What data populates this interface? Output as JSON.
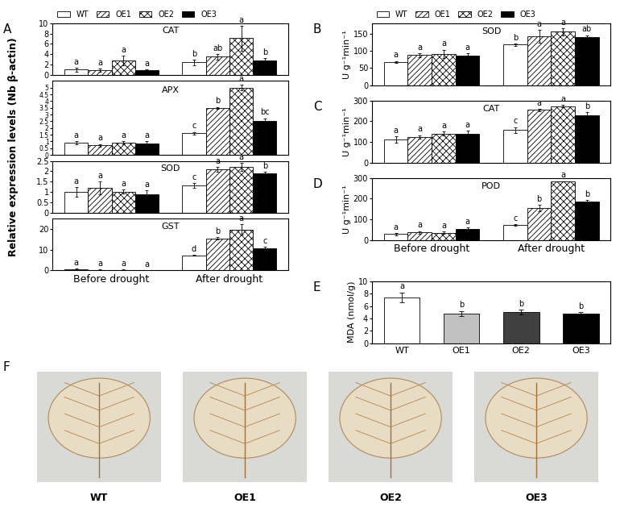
{
  "chart_data": [
    {
      "panel": "A",
      "type": "bar",
      "title": "CAT",
      "ylabel": "Relative expression levels (Nb β-actin)",
      "legend": "top",
      "tick_labels": "y",
      "categories": [
        "Before drought",
        "After drought"
      ],
      "ylim": [
        0,
        10
      ],
      "yticks": [
        0,
        2,
        4,
        6,
        8,
        10
      ],
      "series": [
        {
          "name": "WT",
          "color": "#ffffff",
          "values": [
            1.0,
            2.4
          ],
          "errors": [
            0.4,
            0.6
          ],
          "letters": [
            "a",
            "b"
          ]
        },
        {
          "name": "OE1",
          "color": "#ffffff",
          "values": [
            0.9,
            3.5
          ],
          "errors": [
            0.3,
            0.6
          ],
          "letters": [
            "a",
            "ab"
          ]
        },
        {
          "name": "OE2",
          "color": "#ffffff",
          "values": [
            2.8,
            7.1
          ],
          "errors": [
            0.9,
            2.4
          ],
          "letters": [
            "a",
            "a"
          ]
        },
        {
          "name": "OE3",
          "color": "#000000",
          "values": [
            0.9,
            2.8
          ],
          "errors": [
            0.2,
            0.4
          ],
          "letters": [
            "a",
            "b"
          ]
        }
      ]
    },
    {
      "type": "bar",
      "title": "APX",
      "tick_labels": "y",
      "categories": [
        "Before drought",
        "After drought"
      ],
      "ylim": [
        0,
        5.5
      ],
      "yticks": [
        0,
        0.5,
        1,
        1.5,
        2,
        2.5,
        3,
        3.5,
        4,
        4.5,
        5
      ],
      "series": [
        {
          "name": "WT",
          "color": "#ffffff",
          "values": [
            0.9,
            1.6
          ],
          "errors": [
            0.1,
            0.1
          ],
          "letters": [
            "a",
            "c"
          ]
        },
        {
          "name": "OE1",
          "color": "#ffffff",
          "values": [
            0.7,
            3.5
          ],
          "errors": [
            0.1,
            0.05
          ],
          "letters": [
            "a",
            "b"
          ]
        },
        {
          "name": "OE2",
          "color": "#ffffff",
          "values": [
            0.9,
            5.0
          ],
          "errors": [
            0.1,
            0.2
          ],
          "letters": [
            "a",
            "a"
          ]
        },
        {
          "name": "OE3",
          "color": "#000000",
          "values": [
            0.85,
            2.55
          ],
          "errors": [
            0.15,
            0.15
          ],
          "letters": [
            "a",
            "bc"
          ]
        }
      ]
    },
    {
      "type": "bar",
      "title": "SOD",
      "tick_labels": "y",
      "categories": [
        "Before drought",
        "After drought"
      ],
      "ylim": [
        0,
        2.5
      ],
      "yticks": [
        0,
        0.5,
        1,
        1.5,
        2,
        2.5
      ],
      "series": [
        {
          "name": "WT",
          "color": "#ffffff",
          "values": [
            1.0,
            1.32
          ],
          "errors": [
            0.25,
            0.12
          ],
          "letters": [
            "a",
            "c"
          ]
        },
        {
          "name": "OE1",
          "color": "#ffffff",
          "values": [
            1.2,
            2.1
          ],
          "errors": [
            0.3,
            0.12
          ],
          "letters": [
            "a",
            "a"
          ]
        },
        {
          "name": "OE2",
          "color": "#ffffff",
          "values": [
            1.02,
            2.2
          ],
          "errors": [
            0.1,
            0.2
          ],
          "letters": [
            "a",
            "a"
          ]
        },
        {
          "name": "OE3",
          "color": "#000000",
          "values": [
            0.88,
            1.9
          ],
          "errors": [
            0.2,
            0.08
          ],
          "letters": [
            "a",
            "b"
          ]
        }
      ]
    },
    {
      "type": "bar",
      "title": "GST",
      "categories": [
        "Before drought",
        "After drought"
      ],
      "ylim": [
        0,
        25
      ],
      "yticks": [
        0,
        10,
        20
      ],
      "series": [
        {
          "name": "WT",
          "color": "#ffffff",
          "values": [
            0.6,
            7.3
          ],
          "errors": [
            0.3,
            0.3
          ],
          "letters": [
            "a",
            "d"
          ]
        },
        {
          "name": "OE1",
          "color": "#ffffff",
          "values": [
            0.3,
            15.5
          ],
          "errors": [
            0.2,
            0.5
          ],
          "letters": [
            "a",
            "b"
          ]
        },
        {
          "name": "OE2",
          "color": "#ffffff",
          "values": [
            0.3,
            19.8
          ],
          "errors": [
            0.2,
            2.5
          ],
          "letters": [
            "a",
            "a"
          ]
        },
        {
          "name": "OE3",
          "color": "#000000",
          "values": [
            0.2,
            10.6
          ],
          "errors": [
            0.1,
            1.0
          ],
          "letters": [
            "a",
            "c"
          ]
        }
      ]
    },
    {
      "panel": "B",
      "type": "bar",
      "title": "SOD",
      "ylabel": "U g⁻¹min⁻¹",
      "legend": "top",
      "tick_labels": "y",
      "categories": [
        "Before drought",
        "After drought"
      ],
      "ylim": [
        0,
        180
      ],
      "yticks": [
        0,
        50,
        100,
        150
      ],
      "series": [
        {
          "name": "WT",
          "color": "#ffffff",
          "values": [
            67,
            118
          ],
          "errors": [
            3,
            3
          ],
          "letters": [
            "a",
            "b"
          ]
        },
        {
          "name": "OE1",
          "color": "#ffffff",
          "values": [
            87,
            142
          ],
          "errors": [
            6,
            18
          ],
          "letters": [
            "a",
            "a"
          ]
        },
        {
          "name": "OE2",
          "color": "#ffffff",
          "values": [
            91,
            155
          ],
          "errors": [
            12,
            10
          ],
          "letters": [
            "a",
            "a"
          ]
        },
        {
          "name": "OE3",
          "color": "#000000",
          "values": [
            85,
            140
          ],
          "errors": [
            7,
            5
          ],
          "letters": [
            "a",
            "ab"
          ]
        }
      ]
    },
    {
      "panel": "C",
      "type": "bar",
      "title": "CAT",
      "ylabel": "U g⁻¹min⁻¹",
      "tick_labels": "y",
      "categories": [
        "Before drought",
        "After drought"
      ],
      "ylim": [
        0,
        300
      ],
      "yticks": [
        0,
        100,
        200,
        300
      ],
      "series": [
        {
          "name": "WT",
          "color": "#ffffff",
          "values": [
            112,
            157
          ],
          "errors": [
            15,
            15
          ],
          "letters": [
            "a",
            "c"
          ]
        },
        {
          "name": "OE1",
          "color": "#ffffff",
          "values": [
            125,
            255
          ],
          "errors": [
            8,
            5
          ],
          "letters": [
            "a",
            "a"
          ]
        },
        {
          "name": "OE2",
          "color": "#ffffff",
          "values": [
            140,
            273
          ],
          "errors": [
            10,
            5
          ],
          "letters": [
            "a",
            "a"
          ]
        },
        {
          "name": "OE3",
          "color": "#000000",
          "values": [
            138,
            228
          ],
          "errors": [
            15,
            15
          ],
          "letters": [
            "a",
            "b"
          ]
        }
      ]
    },
    {
      "panel": "D",
      "type": "bar",
      "title": "POD",
      "ylabel": "U g⁻¹min⁻¹",
      "categories": [
        "Before drought",
        "After drought"
      ],
      "ylim": [
        0,
        300
      ],
      "yticks": [
        0,
        100,
        200,
        300
      ],
      "series": [
        {
          "name": "WT",
          "color": "#ffffff",
          "values": [
            28,
            72
          ],
          "errors": [
            5,
            5
          ],
          "letters": [
            "a",
            "c"
          ]
        },
        {
          "name": "OE1",
          "color": "#ffffff",
          "values": [
            37,
            155
          ],
          "errors": [
            6,
            15
          ],
          "letters": [
            "a",
            "b"
          ]
        },
        {
          "name": "OE2",
          "color": "#ffffff",
          "values": [
            35,
            285
          ],
          "errors": [
            5,
            0
          ],
          "letters": [
            "a",
            "a"
          ]
        },
        {
          "name": "OE3",
          "color": "#000000",
          "values": [
            55,
            185
          ],
          "errors": [
            5,
            8
          ],
          "letters": [
            "a",
            "b"
          ]
        }
      ]
    },
    {
      "panel": "E",
      "type": "bar",
      "ylabel": "MDA (nmol/g)",
      "categories": [
        "WT",
        "OE1",
        "OE2",
        "OE3"
      ],
      "values": [
        7.4,
        4.8,
        5.0,
        4.8
      ],
      "errors": [
        0.8,
        0.4,
        0.4,
        0.2
      ],
      "letters": [
        "a",
        "b",
        "b",
        "b"
      ],
      "colors": [
        "#ffffff",
        "#c0c0c0",
        "#404040",
        "#000000"
      ],
      "ylim": [
        0,
        10
      ],
      "yticks": [
        0,
        2,
        4,
        6,
        8,
        10
      ]
    }
  ],
  "photos": {
    "panel": "F",
    "labels": [
      "WT",
      "OE1",
      "OE2",
      "OE3"
    ]
  }
}
